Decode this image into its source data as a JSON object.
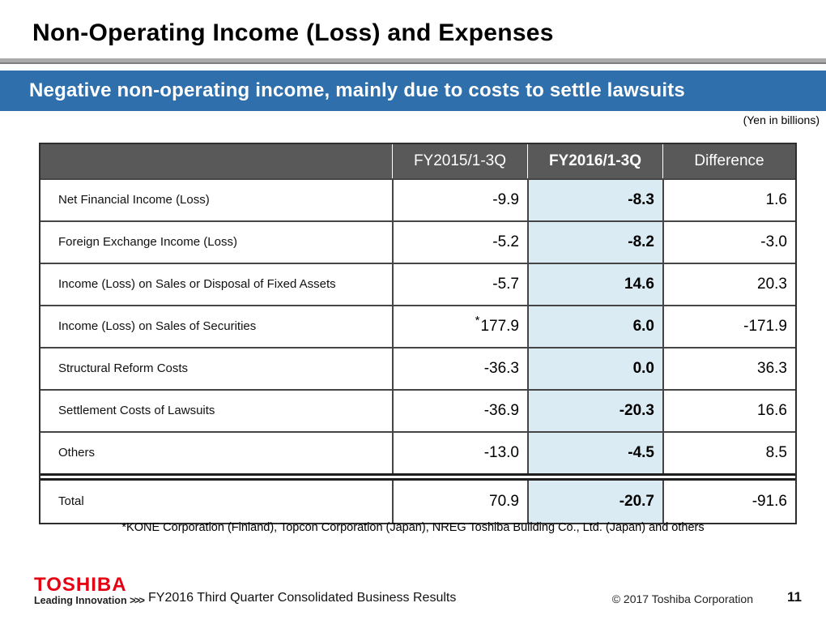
{
  "title": "Non-Operating Income (Loss) and Expenses",
  "banner": {
    "text": "Negative non-operating income, mainly due to costs to settle lawsuits"
  },
  "unit_note": "(Yen in billions)",
  "colors": {
    "banner_blue": "#2E6FAC",
    "header_gray": "#595959",
    "highlight_blue": "#DAEBF3",
    "toshiba_red": "#E60012",
    "rule_gray": "#A9A9A9",
    "border_dark": "#2E2E2E"
  },
  "table": {
    "columns": [
      "",
      "FY2015/1-3Q",
      "FY2016/1-3Q",
      "Difference"
    ],
    "rows": [
      {
        "label": "Net Financial Income (Loss)",
        "fy2015": "-9.9",
        "fy2016": "-8.3",
        "difference": "1.6"
      },
      {
        "label": "Foreign Exchange Income (Loss)",
        "fy2015": "-5.2",
        "fy2016": "-8.2",
        "difference": "-3.0"
      },
      {
        "label": "Income (Loss) on Sales or Disposal of Fixed Assets",
        "fy2015": "-5.7",
        "fy2016": "14.6",
        "difference": "20.3"
      },
      {
        "label": "Income (Loss) on Sales of Securities",
        "fy2015_mark": "*",
        "fy2015": "177.9",
        "fy2016": "6.0",
        "difference": "-171.9"
      },
      {
        "label": "Structural Reform Costs",
        "fy2015": "-36.3",
        "fy2016": "0.0",
        "difference": "36.3"
      },
      {
        "label": "Settlement Costs of Lawsuits",
        "fy2015": "-36.9",
        "fy2016": "-20.3",
        "difference": "16.6"
      },
      {
        "label": "Others",
        "fy2015": "-13.0",
        "fy2016": "-4.5",
        "difference": "8.5"
      }
    ],
    "total_row": {
      "label": "Total",
      "fy2015": "70.9",
      "fy2016": "-20.7",
      "difference": "-91.6"
    }
  },
  "footnote": "*KONE Corporation (Finland), Topcon Corporation (Japan), NREG Toshiba Building Co., Ltd. (Japan) and others",
  "footer": {
    "logo": {
      "brand": "TOSHIBA",
      "tagline": "Leading Innovation",
      "chevrons": ">>>"
    },
    "center_text": "FY2016 Third Quarter Consolidated Business Results",
    "copyright": "© 2017 Toshiba Corporation",
    "page_number": "11"
  }
}
